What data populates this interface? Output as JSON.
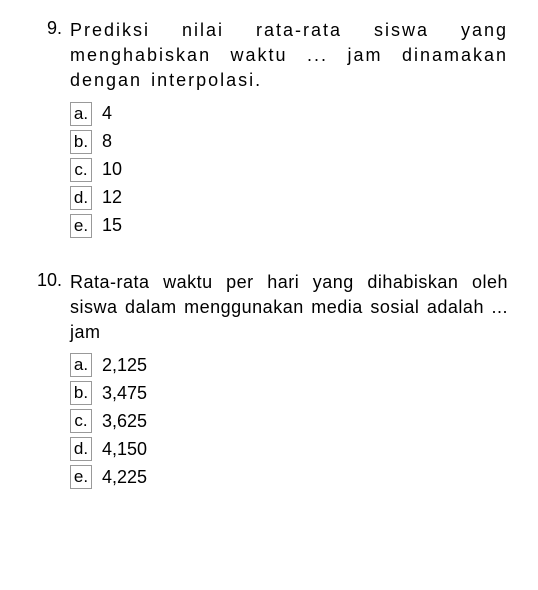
{
  "questions": [
    {
      "number": "9.",
      "text": "Prediksi nilai rata-rata siswa yang menghabiskan waktu ... jam dinamakan dengan interpolasi.",
      "wide_first_line": true,
      "options": [
        {
          "letter": "a.",
          "text": "4"
        },
        {
          "letter": "b.",
          "text": "8"
        },
        {
          "letter": "c.",
          "text": "10"
        },
        {
          "letter": "d.",
          "text": "12"
        },
        {
          "letter": "e.",
          "text": "15"
        }
      ]
    },
    {
      "number": "10.",
      "text": "Rata-rata waktu per hari yang dihabiskan oleh siswa dalam menggunakan media sosial adalah ... jam",
      "wide_first_line": false,
      "options": [
        {
          "letter": "a.",
          "text": "2,125"
        },
        {
          "letter": "b.",
          "text": "3,475"
        },
        {
          "letter": "c.",
          "text": "3,625"
        },
        {
          "letter": "d.",
          "text": "4,150"
        },
        {
          "letter": "e.",
          "text": "4,225"
        }
      ]
    }
  ],
  "colors": {
    "background": "#ffffff",
    "text": "#000000",
    "box_border": "#999999"
  },
  "typography": {
    "font_family": "Arial, Helvetica, sans-serif",
    "font_size_question": 18,
    "font_size_option": 18,
    "line_height": 1.4
  }
}
